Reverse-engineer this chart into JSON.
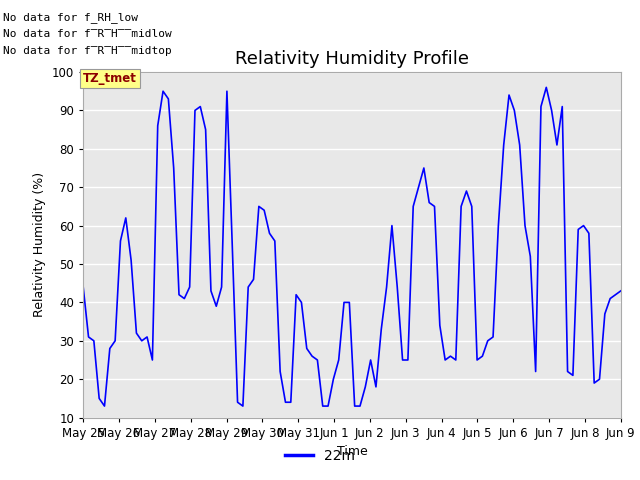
{
  "title": "Relativity Humidity Profile",
  "xlabel": "Time",
  "ylabel": "Relativity Humidity (%)",
  "ylim": [
    10,
    100
  ],
  "yticks": [
    10,
    20,
    30,
    40,
    50,
    60,
    70,
    80,
    90,
    100
  ],
  "line_color": "#0000FF",
  "line_width": 1.2,
  "legend_label": "22m",
  "background_color": "#ffffff",
  "plot_bg_color": "#e8e8e8",
  "grid_color": "#ffffff",
  "xtick_labels": [
    "May 25",
    "May 26",
    "May 27",
    "May 28",
    "May 29",
    "May 30",
    "May 31",
    "Jun 1",
    "Jun 2",
    "Jun 3",
    "Jun 4",
    "Jun 5",
    "Jun 6",
    "Jun 7",
    "Jun 8",
    "Jun 9"
  ],
  "data_y": [
    44,
    31,
    30,
    15,
    13,
    28,
    30,
    56,
    62,
    51,
    32,
    30,
    31,
    25,
    86,
    95,
    93,
    75,
    42,
    41,
    44,
    90,
    91,
    85,
    43,
    39,
    44,
    95,
    55,
    14,
    13,
    44,
    46,
    65,
    64,
    58,
    56,
    22,
    14,
    14,
    42,
    40,
    28,
    26,
    25,
    13,
    13,
    20,
    25,
    40,
    40,
    13,
    13,
    18,
    25,
    18,
    33,
    44,
    60,
    44,
    25,
    25,
    65,
    70,
    75,
    66,
    65,
    34,
    25,
    26,
    25,
    65,
    69,
    65,
    25,
    26,
    30,
    31,
    60,
    81,
    94,
    90,
    81,
    60,
    52,
    22,
    91,
    96,
    90,
    81,
    91,
    22,
    21,
    59,
    60,
    58,
    19,
    20,
    37,
    41,
    42,
    43
  ],
  "no_data_texts": [
    "No data for f_RH_low",
    "No data for f̅R̅H̅̅midlow",
    "No data for f̅R̅H̅̅midtop"
  ],
  "tz_tmet_label": "TZ_tmet",
  "title_fontsize": 13,
  "axis_label_fontsize": 9,
  "tick_fontsize": 8.5
}
